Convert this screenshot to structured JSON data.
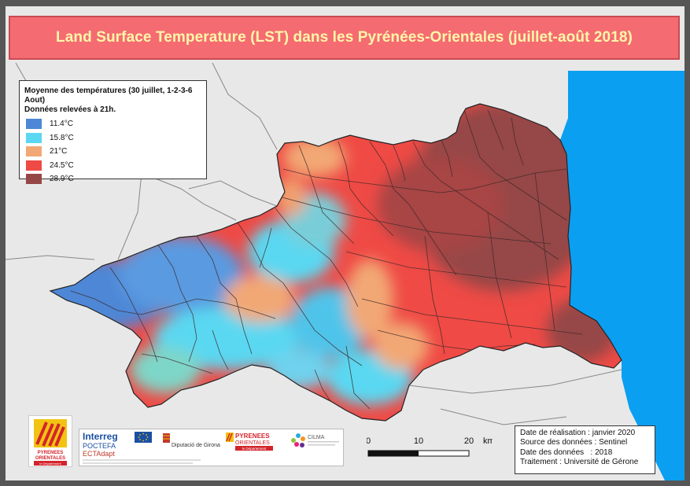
{
  "title": "Land Surface Temperature (LST) dans les Pyrénées-Orientales (juillet-août 2018)",
  "legend": {
    "heading_line1": "Moyenne des températures (30 juillet, 1-2-3-6 Aout)",
    "heading_line2": "Données relevées à 21h.",
    "items": [
      {
        "label": "11.4°C",
        "color": "#4e87d6"
      },
      {
        "label": "15.8°C",
        "color": "#5ad8f2"
      },
      {
        "label": "21°C",
        "color": "#f2a875"
      },
      {
        "label": "24.5°C",
        "color": "#ef4a45"
      },
      {
        "label": "28.9°C",
        "color": "#964646"
      }
    ]
  },
  "scale": {
    "ticks": [
      "0",
      "10",
      "20"
    ],
    "unit": "km"
  },
  "info": {
    "lines": [
      "Date de réalisation : janvier 2020",
      "Source des données : Sentinel",
      "Date des données   : 2018",
      "Traitement : Université de Gérone"
    ]
  },
  "logos": {
    "po_text_1": "PYRENEES",
    "po_text_2": "ORIENTALES",
    "po_text_3": "le Département",
    "interreg": "Interreg",
    "poctefa": "POCTEFA",
    "ectadapt": "ECTAdapt",
    "diputacio": "Diputació de Girona",
    "po_small_1": "PYRENEES",
    "po_small_2": "ORIENTALES",
    "po_small_3": "le Département",
    "cilma": "CILMA"
  },
  "colors": {
    "sea": "#0a9ff0",
    "land_outside": "#e8e8e8",
    "title_bg": "#f56b72",
    "title_text": "#fff7a8"
  }
}
